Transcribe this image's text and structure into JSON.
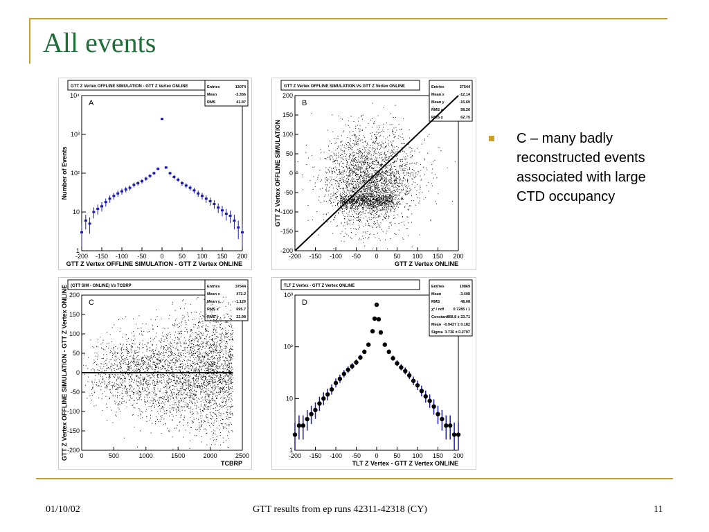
{
  "slide": {
    "title": "All events",
    "bullet": "C – many badly\nreconstructed events\nassociated with large\nCTD occupancy",
    "footer_date": "01/10/02",
    "footer_center": "GTT results from ep runs 42311-42318 (CY)",
    "footer_page": "11"
  },
  "chart_data": [
    {
      "panel_label": "A",
      "type": "histogram",
      "title": "GTT Z Vertex OFFLINE SIMULATION - GTT Z Vertex ONLINE",
      "xlabel": "GTT Z Vertex OFFLINE SIMULATION - GTT Z Vertex ONLINE",
      "ylabel": "Number of Events",
      "xlim": [
        -200,
        200
      ],
      "ylim": [
        1,
        10000
      ],
      "log_y": true,
      "xticks": [
        -200,
        -150,
        -100,
        -50,
        0,
        50,
        100,
        150,
        200
      ],
      "yticks_label": [
        "1",
        "10",
        "10²",
        "10³",
        "10⁴"
      ],
      "stats": [
        [
          "Entries",
          "13074"
        ],
        [
          "Mean",
          "-3.356"
        ],
        [
          "RMS",
          "41.87"
        ]
      ],
      "x": [
        -200,
        -190,
        -180,
        -170,
        -160,
        -150,
        -140,
        -130,
        -120,
        -110,
        -100,
        -90,
        -80,
        -70,
        -60,
        -50,
        -40,
        -30,
        -20,
        -10,
        0,
        10,
        20,
        30,
        40,
        50,
        60,
        70,
        80,
        90,
        100,
        110,
        120,
        130,
        140,
        150,
        160,
        170,
        180,
        190,
        200
      ],
      "y": [
        3,
        6,
        5,
        10,
        12,
        14,
        18,
        22,
        26,
        30,
        34,
        38,
        42,
        50,
        55,
        62,
        72,
        85,
        100,
        130,
        2500,
        140,
        100,
        80,
        68,
        55,
        48,
        42,
        36,
        30,
        26,
        22,
        19,
        16,
        13,
        11,
        9,
        8,
        6,
        4,
        3
      ]
    },
    {
      "panel_label": "B",
      "type": "scatter",
      "title": "GTT Z Vertex OFFLINE SIMULATION Vs GTT Z Vertex ONLINE",
      "xlabel": "GTT Z Vertex ONLINE",
      "ylabel": "GTT Z Vertex OFFLINE SIMULATION",
      "xlim": [
        -200,
        200
      ],
      "ylim": [
        -200,
        200
      ],
      "xticks": [
        -200,
        -150,
        -100,
        -50,
        0,
        50,
        100,
        150,
        200
      ],
      "yticks": [
        -200,
        -150,
        -100,
        -50,
        0,
        50,
        100,
        150,
        200
      ],
      "stats": [
        [
          "Entries",
          "37544"
        ],
        [
          "Mean x",
          "-12.14"
        ],
        [
          "Mean y",
          "-15.69"
        ],
        [
          "RMS x",
          "58.26"
        ],
        [
          "RMS y",
          "62.75"
        ]
      ],
      "diagonal": [
        [
          -200,
          -200
        ],
        [
          200,
          200
        ]
      ],
      "cloud": {
        "n": 2600,
        "cx": -15,
        "cy": -15,
        "sx": 58,
        "sy": 62
      },
      "band": {
        "n": 700,
        "x_range": [
          -90,
          40
        ],
        "y_center": -70,
        "y_spread": 10
      }
    },
    {
      "panel_label": "C",
      "type": "scatter",
      "title": "(GTT SIM - ONLINE) Vs TCBRP",
      "xlabel": "TCBRP",
      "ylabel": "GTT Z Vertex OFFLINE SIMULATION - GTT Z Vertex ONLINE",
      "xlim": [
        0,
        2500
      ],
      "ylim": [
        -200,
        200
      ],
      "xticks": [
        0,
        500,
        1000,
        1500,
        2000,
        2500
      ],
      "yticks": [
        -200,
        -150,
        -100,
        -50,
        0,
        50,
        100,
        150,
        200
      ],
      "stats": [
        [
          "Entries",
          "37544"
        ],
        [
          "Mean x",
          "472.2"
        ],
        [
          "Mean y",
          "-1.129"
        ],
        [
          "RMS x",
          "695.7"
        ],
        [
          "RMS y",
          "22.98"
        ]
      ],
      "horizontal_line": 0,
      "cloud": {
        "n": 3400,
        "x_max": 2350,
        "y_spread": 90
      }
    },
    {
      "panel_label": "D",
      "type": "histogram",
      "title": "TLT Z Vertex - GTT Z Vertex ONLINE",
      "xlabel": "TLT Z Vertex - GTT Z Vertex ONLINE",
      "ylabel": "",
      "xlim": [
        -200,
        200
      ],
      "ylim": [
        1,
        1000
      ],
      "log_y": true,
      "xticks": [
        -200,
        -150,
        -100,
        -50,
        0,
        50,
        100,
        150,
        200
      ],
      "yticks_label": [
        "1",
        "10",
        "10²",
        "10³"
      ],
      "stats": [
        [
          "Entries",
          "10869"
        ],
        [
          "Mean",
          "-3.408"
        ],
        [
          "RMS",
          "48.08"
        ],
        [
          "χ² / ndf",
          "0.7285 / 1"
        ],
        [
          "Constant",
          "868.8 ± 23.71"
        ],
        [
          "Mean",
          "-0.9427 ± 0.182"
        ],
        [
          "Sigma",
          "3.736 ± 0.2797"
        ]
      ],
      "x": [
        -200,
        -190,
        -180,
        -170,
        -160,
        -150,
        -140,
        -130,
        -120,
        -110,
        -100,
        -90,
        -80,
        -70,
        -60,
        -50,
        -40,
        -30,
        -20,
        -10,
        -5,
        0,
        5,
        10,
        20,
        30,
        40,
        50,
        60,
        70,
        80,
        90,
        100,
        110,
        120,
        130,
        140,
        150,
        160,
        170,
        180,
        190,
        200
      ],
      "y": [
        2,
        3,
        3,
        4,
        5,
        6,
        8,
        10,
        12,
        15,
        20,
        24,
        30,
        36,
        42,
        50,
        62,
        80,
        110,
        200,
        350,
        650,
        340,
        190,
        110,
        80,
        60,
        48,
        40,
        34,
        28,
        22,
        18,
        14,
        11,
        9,
        7,
        5,
        4,
        3,
        3,
        2,
        2
      ]
    }
  ]
}
